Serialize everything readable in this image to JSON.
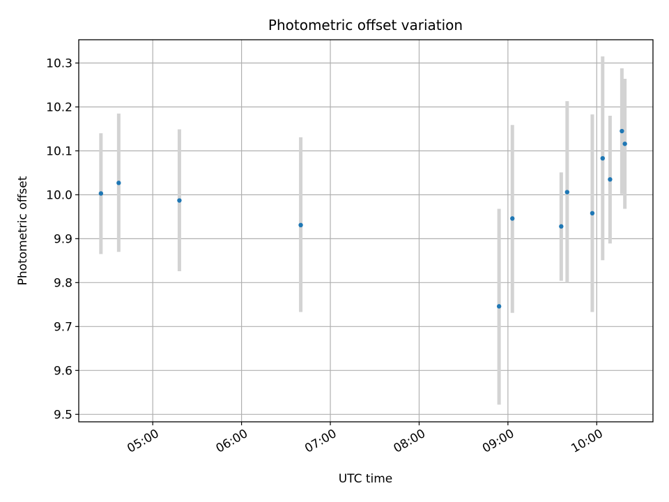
{
  "chart_data": {
    "type": "scatter",
    "title": "Photometric offset variation",
    "xlabel": "UTC time",
    "ylabel": "Photometric offset",
    "x_axis_type": "time",
    "xlim": [
      "04:10",
      "10:38"
    ],
    "ylim": [
      9.483,
      10.353
    ],
    "x_ticks": [
      "05:00",
      "06:00",
      "07:00",
      "08:00",
      "09:00",
      "10:00"
    ],
    "y_ticks": [
      "9.5",
      "9.6",
      "9.7",
      "9.8",
      "9.9",
      "10.0",
      "10.1",
      "10.2",
      "10.3"
    ],
    "grid": true,
    "legend": false,
    "marker_color": "#1f77b4",
    "errorbar_color": "#d3d3d3",
    "points": [
      {
        "time": "04:25",
        "y": 10.003,
        "err_low": 9.865,
        "err_high": 10.14
      },
      {
        "time": "04:37",
        "y": 10.027,
        "err_low": 9.87,
        "err_high": 10.185
      },
      {
        "time": "05:18",
        "y": 9.987,
        "err_low": 9.826,
        "err_high": 10.149
      },
      {
        "time": "06:40",
        "y": 9.931,
        "err_low": 9.733,
        "err_high": 10.131
      },
      {
        "time": "08:54",
        "y": 9.746,
        "err_low": 9.522,
        "err_high": 9.968
      },
      {
        "time": "09:03",
        "y": 9.946,
        "err_low": 9.731,
        "err_high": 10.159
      },
      {
        "time": "09:36",
        "y": 9.928,
        "err_low": 9.804,
        "err_high": 10.051
      },
      {
        "time": "09:40",
        "y": 10.006,
        "err_low": 9.8,
        "err_high": 10.213
      },
      {
        "time": "09:57",
        "y": 9.958,
        "err_low": 9.733,
        "err_high": 10.183
      },
      {
        "time": "10:04",
        "y": 10.083,
        "err_low": 9.851,
        "err_high": 10.315
      },
      {
        "time": "10:09",
        "y": 10.035,
        "err_low": 9.889,
        "err_high": 10.18
      },
      {
        "time": "10:17",
        "y": 10.145,
        "err_low": 10.002,
        "err_high": 10.288
      },
      {
        "time": "10:19",
        "y": 10.116,
        "err_low": 9.968,
        "err_high": 10.264
      }
    ]
  }
}
